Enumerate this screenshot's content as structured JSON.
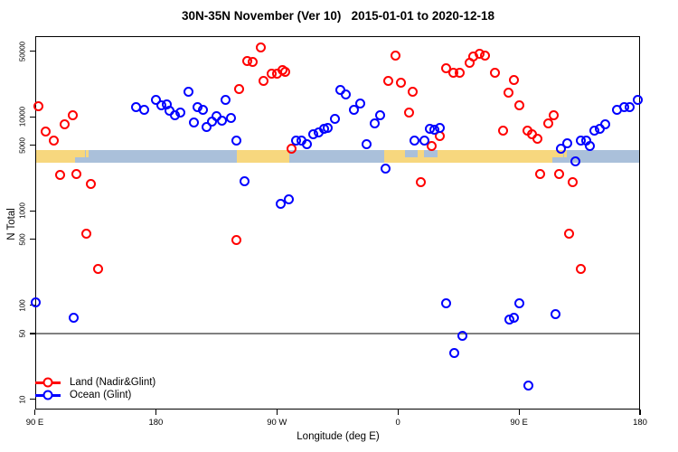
{
  "chart_data": {
    "type": "scatter",
    "title": "30N-35N November (Ver 10)   2015-01-01 to 2020-12-18",
    "xlabel": "Longitude (deg E)",
    "ylabel": "N Total",
    "x_axis": {
      "range": [
        90,
        540
      ],
      "note": "longitude unwrapped eastward starting at 90E (values past 180 wrap through 90W, 0, 90E, 180)",
      "ticks": [
        {
          "value": 90,
          "label": "90 E"
        },
        {
          "value": 180,
          "label": "180"
        },
        {
          "value": 270,
          "label": "90 W"
        },
        {
          "value": 360,
          "label": "0"
        },
        {
          "value": 450,
          "label": "90 E"
        },
        {
          "value": 540,
          "label": "180"
        }
      ]
    },
    "y_axis": {
      "scale": "log",
      "range": [
        7.5,
        70000
      ],
      "ticks": [
        {
          "value": 10,
          "label": "10"
        },
        {
          "value": 50,
          "label": "50"
        },
        {
          "value": 100,
          "label": "100"
        },
        {
          "value": 500,
          "label": "500"
        },
        {
          "value": 1000,
          "label": "1000"
        },
        {
          "value": 5000,
          "label": "5000"
        },
        {
          "value": 10000,
          "label": "10000"
        },
        {
          "value": 50000,
          "label": "50000"
        }
      ]
    },
    "reference_line": {
      "y": 50,
      "color": "#808080"
    },
    "surface_band": {
      "y_top": 4400,
      "y_bottom": 3250,
      "land_color": "#F7D77E",
      "ocean_color": "#AAC0DA",
      "segments": [
        {
          "type": "land",
          "from": 90,
          "to": 120
        },
        {
          "type": "coast",
          "from": 120,
          "to": 137
        },
        {
          "type": "ocean",
          "from": 137,
          "to": 240
        },
        {
          "type": "land",
          "from": 240,
          "to": 279
        },
        {
          "type": "ocean",
          "from": 279,
          "to": 350
        },
        {
          "type": "land",
          "from": 350,
          "to": 361
        },
        {
          "type": "med",
          "from": 361,
          "to": 396
        },
        {
          "type": "land",
          "from": 396,
          "to": 475
        },
        {
          "type": "coast",
          "from": 475,
          "to": 493
        },
        {
          "type": "ocean",
          "from": 493,
          "to": 540
        }
      ]
    },
    "legend": {
      "position": "bottom-left",
      "entries": [
        {
          "label": "Land (Nadir&Glint)",
          "color": "#FF0000"
        },
        {
          "label": "Ocean (Glint)",
          "color": "#0000FF"
        }
      ]
    },
    "series": [
      {
        "name": "Land (Nadir&Glint)",
        "color": "#FF0000",
        "marker": "open-circle",
        "points": [
          [
            93,
            12900
          ],
          [
            118,
            10300
          ],
          [
            112,
            8260
          ],
          [
            98,
            6920
          ],
          [
            104,
            5550
          ],
          [
            109,
            2400
          ],
          [
            121,
            2450
          ],
          [
            132,
            1920
          ],
          [
            128,
            580
          ],
          [
            137,
            245
          ],
          [
            240,
            490
          ],
          [
            242,
            19600
          ],
          [
            248,
            38900
          ],
          [
            252,
            38000
          ],
          [
            258,
            55000
          ],
          [
            260,
            23900
          ],
          [
            266,
            28500
          ],
          [
            270,
            28500
          ],
          [
            274,
            31200
          ],
          [
            276,
            29800
          ],
          [
            281,
            4550
          ],
          [
            353,
            23900
          ],
          [
            358,
            44400
          ],
          [
            362,
            22900
          ],
          [
            371,
            18700
          ],
          [
            368,
            11000
          ],
          [
            377,
            2010
          ],
          [
            385,
            4870
          ],
          [
            391,
            6210
          ],
          [
            396,
            32600
          ],
          [
            401,
            29200
          ],
          [
            406,
            29200
          ],
          [
            413,
            37200
          ],
          [
            416,
            43400
          ],
          [
            421,
            46400
          ],
          [
            425,
            44400
          ],
          [
            432,
            29200
          ],
          [
            438,
            7080
          ],
          [
            442,
            17900
          ],
          [
            446,
            24400
          ],
          [
            450,
            13200
          ],
          [
            456,
            7080
          ],
          [
            460,
            6490
          ],
          [
            464,
            5800
          ],
          [
            472,
            8450
          ],
          [
            476,
            10300
          ],
          [
            466,
            2450
          ],
          [
            480,
            2450
          ],
          [
            490,
            2010
          ],
          [
            487,
            580
          ],
          [
            496,
            243
          ]
        ]
      },
      {
        "name": "Ocean (Glint)",
        "color": "#0000FF",
        "marker": "open-circle",
        "points": [
          [
            91,
            108
          ],
          [
            119,
            73
          ],
          [
            165,
            12600
          ],
          [
            171,
            11950
          ],
          [
            180,
            15000
          ],
          [
            184,
            13400
          ],
          [
            188,
            13700
          ],
          [
            190,
            11500
          ],
          [
            194,
            10300
          ],
          [
            198,
            11000
          ],
          [
            204,
            18300
          ],
          [
            208,
            8700
          ],
          [
            211,
            12600
          ],
          [
            215,
            11800
          ],
          [
            218,
            7730
          ],
          [
            222,
            8900
          ],
          [
            225,
            10100
          ],
          [
            229,
            9200
          ],
          [
            232,
            15300
          ],
          [
            236,
            9700
          ],
          [
            240,
            5550
          ],
          [
            246,
            2050
          ],
          [
            273,
            1180
          ],
          [
            279,
            1320
          ],
          [
            284,
            5550
          ],
          [
            288,
            5550
          ],
          [
            292,
            5080
          ],
          [
            297,
            6490
          ],
          [
            301,
            6800
          ],
          [
            305,
            7540
          ],
          [
            308,
            7700
          ],
          [
            313,
            9500
          ],
          [
            317,
            19200
          ],
          [
            321,
            17200
          ],
          [
            327,
            11800
          ],
          [
            332,
            13900
          ],
          [
            337,
            5080
          ],
          [
            343,
            8600
          ],
          [
            347,
            10300
          ],
          [
            351,
            2800
          ],
          [
            372,
            5550
          ],
          [
            380,
            5550
          ],
          [
            384,
            7540
          ],
          [
            387,
            7370
          ],
          [
            391,
            7700
          ],
          [
            396,
            104
          ],
          [
            402,
            31
          ],
          [
            408,
            47
          ],
          [
            443,
            70
          ],
          [
            446,
            73
          ],
          [
            450,
            105
          ],
          [
            457,
            14
          ],
          [
            477,
            80
          ],
          [
            481,
            4550
          ],
          [
            486,
            5300
          ],
          [
            492,
            3400
          ],
          [
            496,
            5550
          ],
          [
            500,
            5550
          ],
          [
            503,
            4870
          ],
          [
            506,
            7190
          ],
          [
            510,
            7540
          ],
          [
            514,
            8270
          ],
          [
            523,
            11950
          ],
          [
            528,
            12600
          ],
          [
            532,
            12600
          ],
          [
            538,
            15300
          ]
        ]
      }
    ]
  }
}
